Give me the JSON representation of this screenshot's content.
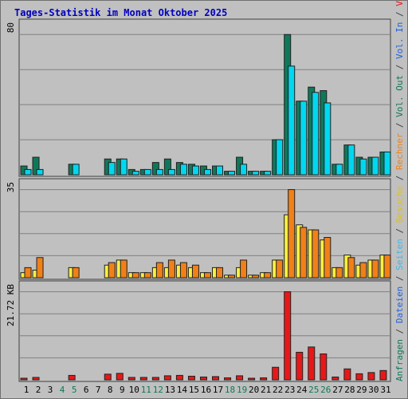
{
  "chart_data": {
    "type": "bar",
    "title": "Tages-Statistik im Monat Oktober 2025",
    "categories": [
      "1",
      "2",
      "3",
      "4",
      "5",
      "6",
      "7",
      "8",
      "9",
      "10",
      "11",
      "12",
      "13",
      "14",
      "15",
      "16",
      "17",
      "18",
      "19",
      "20",
      "21",
      "22",
      "23",
      "24",
      "25",
      "26",
      "27",
      "28",
      "29",
      "30",
      "31"
    ],
    "weekend_days": [
      "4",
      "5",
      "11",
      "12",
      "18",
      "19",
      "25",
      "26"
    ],
    "panels": [
      {
        "ymax_label": "80",
        "ylim": [
          0,
          80
        ],
        "series": [
          {
            "name": "Anfragen",
            "color": "#10785a",
            "values": [
              5,
              10,
              0,
              0,
              6,
              0,
              0,
              9,
              9,
              3,
              3,
              7,
              9,
              7,
              6,
              5,
              5,
              2,
              10,
              2,
              2,
              20,
              80,
              42,
              50,
              48,
              6,
              17,
              10,
              10,
              13
            ]
          },
          {
            "name": "Dateien",
            "color": "#00d8f0",
            "values": [
              3,
              3,
              0,
              0,
              6,
              0,
              0,
              7,
              9,
              2,
              3,
              3,
              3,
              6,
              5,
              3,
              5,
              2,
              6,
              2,
              2,
              20,
              62,
              42,
              47,
              41,
              6,
              17,
              9,
              10,
              13
            ]
          },
          {
            "name": "Seiten",
            "color": "#40b8e8",
            "values": [
              0,
              0,
              0,
              0,
              0,
              0,
              0,
              0,
              0,
              0,
              0,
              0,
              0,
              0,
              0,
              0,
              0,
              0,
              0,
              0,
              0,
              0,
              0,
              0,
              0,
              0,
              0,
              0,
              0,
              0,
              0
            ]
          }
        ],
        "grid": true,
        "grid_lines": 4
      },
      {
        "ymax_label": "35",
        "ylim": [
          0,
          35
        ],
        "series": [
          {
            "name": "Besuche",
            "color": "#f8f040",
            "values": [
              2,
              3,
              0,
              0,
              4,
              0,
              0,
              5,
              7,
              2,
              2,
              4,
              4,
              5,
              4,
              2,
              4,
              1,
              4,
              1,
              2,
              7,
              25,
              21,
              19,
              15,
              4,
              9,
              5,
              7,
              9
            ]
          },
          {
            "name": "Rechner",
            "color": "#f08018",
            "values": [
              4,
              8,
              0,
              0,
              4,
              0,
              0,
              6,
              7,
              2,
              2,
              6,
              7,
              6,
              5,
              2,
              4,
              1,
              7,
              1,
              2,
              7,
              35,
              20,
              19,
              16,
              4,
              8,
              6,
              7,
              9
            ]
          }
        ],
        "grid": true,
        "grid_lines": 4
      },
      {
        "ymax_label": "21.72 KB",
        "ylim": [
          0,
          21.72
        ],
        "series": [
          {
            "name": "Volumen",
            "color": "#e81818",
            "values": [
              0.4,
              0.6,
              0,
              0,
              1.1,
              0,
              0,
              1.4,
              1.6,
              0.6,
              0.6,
              0.6,
              1.0,
              1.1,
              0.9,
              0.7,
              0.8,
              0.5,
              1.0,
              0.4,
              0.5,
              3.1,
              21.72,
              6.8,
              8.1,
              6.4,
              0.7,
              2.7,
              1.5,
              1.8,
              2.3
            ]
          }
        ],
        "grid": true,
        "grid_lines": 4
      }
    ],
    "right_legend": [
      {
        "text": "Anfragen",
        "color": "#10785a"
      },
      {
        "text": " / ",
        "color": "#404040"
      },
      {
        "text": "Dateien",
        "color": "#2060e0"
      },
      {
        "text": " / ",
        "color": "#404040"
      },
      {
        "text": "Seiten",
        "color": "#40b8e8"
      },
      {
        "text": " / ",
        "color": "#404040"
      },
      {
        "text": "Besuche",
        "color": "#e0c020"
      },
      {
        "text": " / ",
        "color": "#404040"
      },
      {
        "text": "Rechner",
        "color": "#f08018"
      },
      {
        "text": " / ",
        "color": "#404040"
      },
      {
        "text": "Vol. Out",
        "color": "#10785a"
      },
      {
        "text": " / ",
        "color": "#404040"
      },
      {
        "text": "Vol. In",
        "color": "#2060e0"
      },
      {
        "text": " / ",
        "color": "#404040"
      },
      {
        "text": "Volumen",
        "color": "#e81818"
      }
    ],
    "colors": {
      "background": "#c0c0c0",
      "title": "#0000c0",
      "axis_text": "#000000",
      "weekend_text": "#10785a"
    }
  }
}
